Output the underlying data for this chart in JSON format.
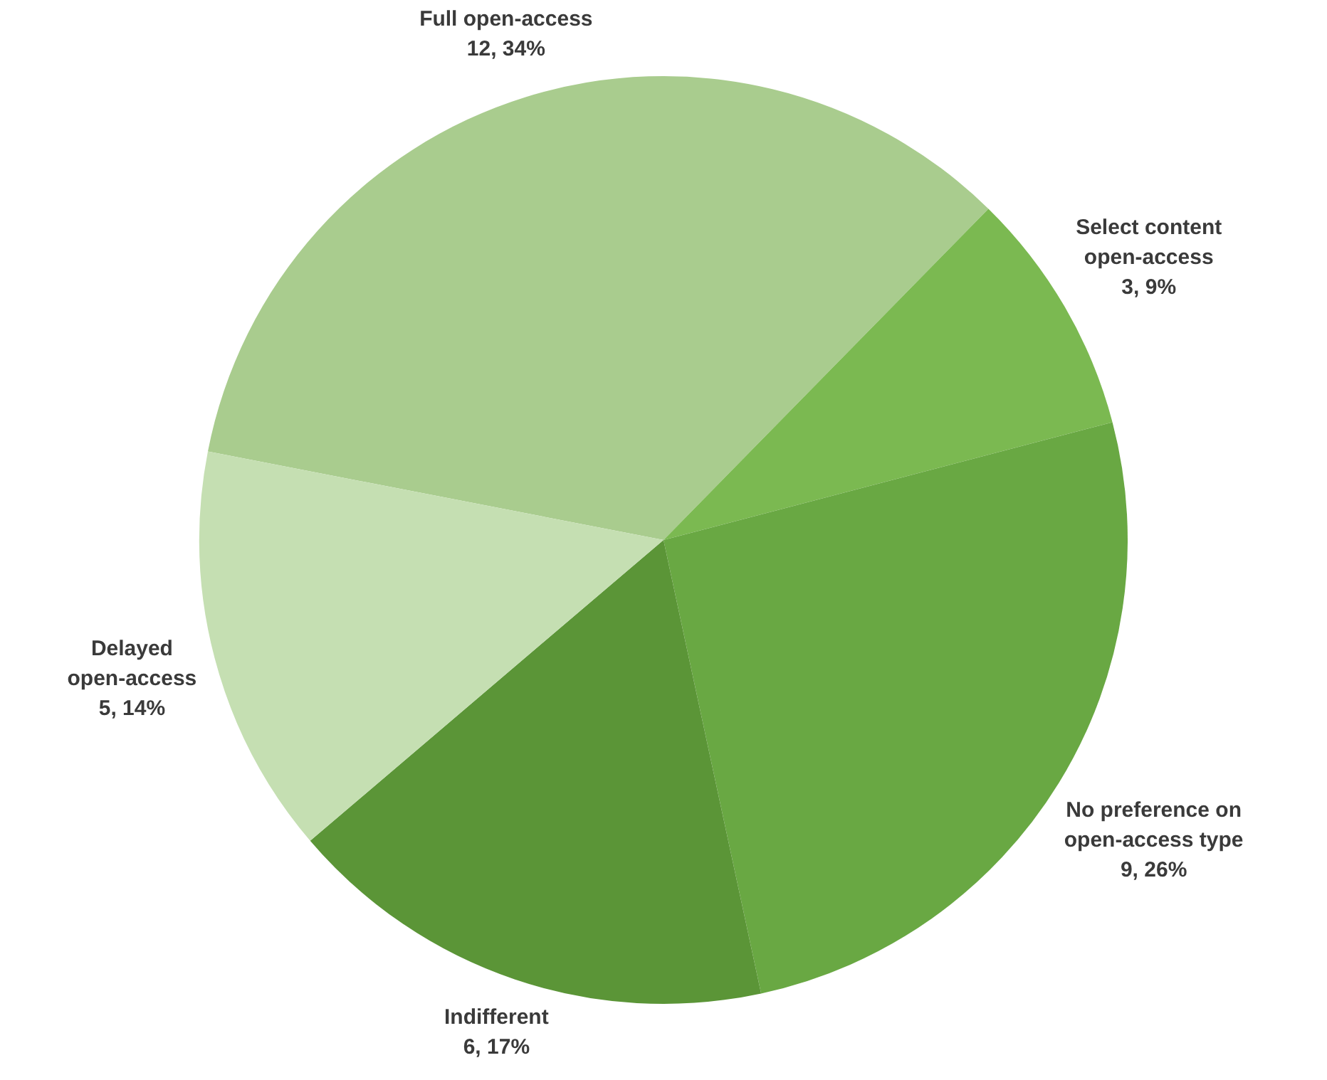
{
  "chart_data": {
    "type": "pie",
    "categories": [
      "Full open-access",
      "Select content open-access",
      "No preference on open-access type",
      "Indifferent",
      "Delayed open-access"
    ],
    "values": [
      12,
      3,
      9,
      6,
      5
    ],
    "value_labels": [
      "12, 34%",
      "3, 9%",
      "9, 26%",
      "6, 17%",
      "5, 14%"
    ],
    "colors": [
      "#a9cc8e",
      "#7bb951",
      "#69a843",
      "#5b9537",
      "#c5dfb2"
    ],
    "legend": false
  }
}
